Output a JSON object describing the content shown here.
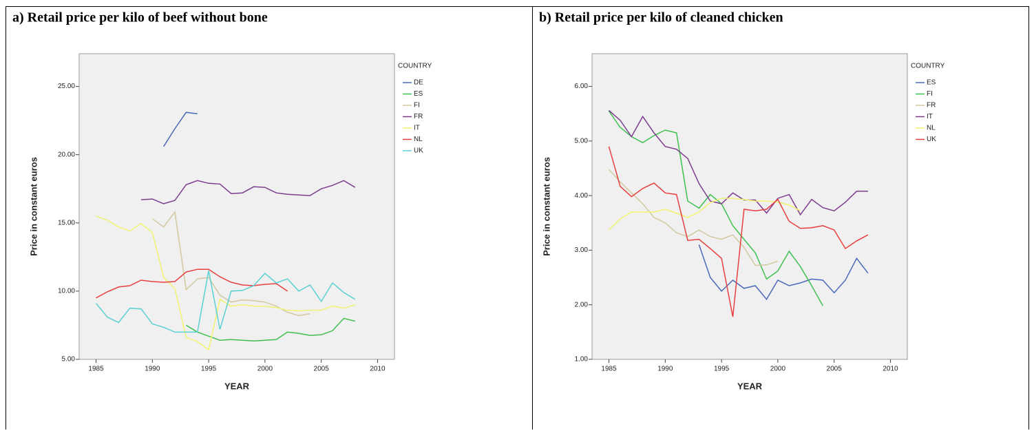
{
  "chart_data": [
    {
      "type": "line",
      "title": "a) Retail price per kilo of beef without bone",
      "x_label": "YEAR",
      "y_label": "Price in constant euros",
      "legend_title": "COUNTRY",
      "x": [
        1985,
        1986,
        1987,
        1988,
        1989,
        1990,
        1991,
        1992,
        1993,
        1994,
        1995,
        1996,
        1997,
        1998,
        1999,
        2000,
        2001,
        2002,
        2003,
        2004,
        2005,
        2006,
        2007,
        2008
      ],
      "xlim": [
        1983.5,
        2011.5
      ],
      "xticks": [
        1985,
        1990,
        1995,
        2000,
        2005,
        2010
      ],
      "ylim": [
        5,
        27.4
      ],
      "yticks": [
        {
          "value": 5,
          "label": "5.00"
        },
        {
          "value": 10,
          "label": "10.00"
        },
        {
          "value": 15,
          "label": "15.00"
        },
        {
          "value": 20,
          "label": "20.00"
        },
        {
          "value": 25,
          "label": "25.00"
        }
      ],
      "series": [
        {
          "name": "DE",
          "color": "#4a68b8",
          "values": [
            null,
            null,
            null,
            null,
            null,
            null,
            20.6,
            21.9,
            23.1,
            23.0,
            null,
            null,
            null,
            null,
            null,
            null,
            null,
            null,
            null,
            null,
            null,
            null,
            null,
            null
          ]
        },
        {
          "name": "ES",
          "color": "#3ec04e",
          "values": [
            null,
            null,
            null,
            null,
            null,
            null,
            null,
            null,
            7.5,
            7.0,
            6.7,
            6.4,
            6.45,
            6.4,
            6.35,
            6.4,
            6.45,
            7.0,
            6.9,
            6.75,
            6.8,
            7.1,
            8.0,
            7.8
          ]
        },
        {
          "name": "FI",
          "color": "#d2c8a0",
          "values": [
            null,
            null,
            null,
            null,
            null,
            15.3,
            14.7,
            15.8,
            10.1,
            10.9,
            11.0,
            9.7,
            9.2,
            9.35,
            9.3,
            9.2,
            8.9,
            8.45,
            8.2,
            8.35,
            null,
            null,
            null,
            null
          ]
        },
        {
          "name": "FR",
          "color": "#7d3b8f",
          "values": [
            null,
            null,
            null,
            null,
            16.7,
            16.75,
            16.4,
            16.65,
            17.8,
            18.1,
            17.9,
            17.85,
            17.15,
            17.2,
            17.65,
            17.6,
            17.2,
            17.1,
            17.05,
            17.0,
            17.5,
            17.75,
            18.1,
            17.6
          ]
        },
        {
          "name": "IT",
          "color": "#f2f270",
          "values": [
            15.5,
            15.2,
            14.7,
            14.4,
            14.95,
            14.3,
            11.0,
            10.2,
            6.6,
            6.3,
            5.7,
            9.4,
            8.9,
            9.0,
            8.9,
            8.9,
            8.8,
            8.6,
            8.55,
            8.6,
            8.6,
            8.9,
            8.75,
            9.0
          ]
        },
        {
          "name": "NL",
          "color": "#e83e3e",
          "values": [
            9.5,
            9.95,
            10.3,
            10.4,
            10.8,
            10.7,
            10.65,
            10.7,
            11.4,
            11.6,
            11.6,
            11.05,
            10.65,
            10.45,
            10.4,
            10.5,
            10.55,
            10.0,
            null,
            null,
            null,
            null,
            null,
            null
          ]
        },
        {
          "name": "UK",
          "color": "#5ad0d2",
          "values": [
            9.1,
            8.1,
            7.7,
            8.75,
            8.7,
            7.6,
            7.35,
            7.0,
            7.0,
            7.0,
            11.5,
            7.2,
            10.0,
            10.05,
            10.4,
            11.3,
            10.6,
            10.9,
            10.0,
            10.45,
            9.25,
            10.6,
            9.9,
            9.4
          ]
        }
      ]
    },
    {
      "type": "line",
      "title": "b) Retail price per kilo of cleaned chicken",
      "x_label": "YEAR",
      "y_label": "Price in constant euros",
      "legend_title": "COUNTRY",
      "x": [
        1985,
        1986,
        1987,
        1988,
        1989,
        1990,
        1991,
        1992,
        1993,
        1994,
        1995,
        1996,
        1997,
        1998,
        1999,
        2000,
        2001,
        2002,
        2003,
        2004,
        2005,
        2006,
        2007,
        2008
      ],
      "xlim": [
        1983.5,
        2011.5
      ],
      "xticks": [
        1985,
        1990,
        1995,
        2000,
        2005,
        2010
      ],
      "ylim": [
        1,
        6.6
      ],
      "yticks": [
        {
          "value": 1,
          "label": "1.00"
        },
        {
          "value": 2,
          "label": "2.00"
        },
        {
          "value": 3,
          "label": "3.00"
        },
        {
          "value": 4,
          "label": "4.00"
        },
        {
          "value": 5,
          "label": "5.00"
        },
        {
          "value": 6,
          "label": "6.00"
        }
      ],
      "series": [
        {
          "name": "ES",
          "color": "#4a68b8",
          "values": [
            null,
            null,
            null,
            null,
            null,
            null,
            null,
            null,
            3.1,
            2.5,
            2.25,
            2.45,
            2.3,
            2.35,
            2.1,
            2.45,
            2.35,
            2.4,
            2.47,
            2.45,
            2.22,
            2.45,
            2.85,
            2.58
          ]
        },
        {
          "name": "FI",
          "color": "#3ec04e",
          "values": [
            5.55,
            5.25,
            5.08,
            4.97,
            5.1,
            5.2,
            5.15,
            3.9,
            3.77,
            4.02,
            3.85,
            3.45,
            3.2,
            2.95,
            2.47,
            2.62,
            2.98,
            2.7,
            2.35,
            1.98,
            null,
            null,
            null,
            null
          ]
        },
        {
          "name": "FR",
          "color": "#d2c8a0",
          "values": [
            4.48,
            4.25,
            4.05,
            3.85,
            3.6,
            3.5,
            3.32,
            3.25,
            3.37,
            3.25,
            3.2,
            3.28,
            3.05,
            2.72,
            2.73,
            2.8,
            null,
            null,
            null,
            null,
            null,
            null,
            null,
            null
          ]
        },
        {
          "name": "IT",
          "color": "#7d3b8f",
          "values": [
            5.56,
            5.38,
            5.08,
            5.45,
            5.15,
            4.9,
            4.85,
            4.68,
            4.22,
            3.9,
            3.85,
            4.05,
            3.92,
            3.92,
            3.68,
            3.95,
            4.02,
            3.65,
            3.93,
            3.78,
            3.72,
            3.88,
            4.08,
            4.08
          ]
        },
        {
          "name": "NL",
          "color": "#f2f270",
          "values": [
            3.37,
            3.57,
            3.7,
            3.7,
            3.7,
            3.75,
            3.68,
            3.6,
            3.7,
            3.87,
            3.95,
            3.95,
            3.93,
            3.9,
            3.9,
            3.88,
            3.83,
            3.72,
            null,
            null,
            null,
            null,
            null,
            null
          ]
        },
        {
          "name": "UK",
          "color": "#e83e3e",
          "values": [
            4.9,
            4.17,
            3.98,
            4.13,
            4.23,
            4.05,
            4.02,
            3.18,
            3.2,
            3.03,
            2.85,
            1.78,
            3.75,
            3.72,
            3.75,
            3.93,
            3.53,
            3.4,
            3.41,
            3.45,
            3.37,
            3.03,
            3.17,
            3.28
          ]
        }
      ]
    }
  ]
}
